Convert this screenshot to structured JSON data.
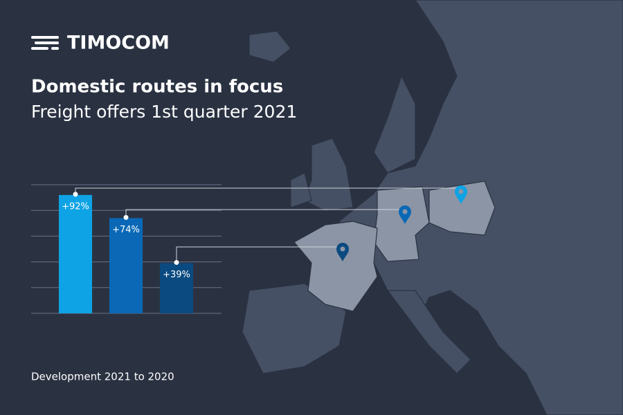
{
  "logo": "TIMOCOM",
  "chart_data": {
    "type": "bar",
    "title": "Domestic routes in focus",
    "subtitle": "Freight offers 1st quarter 2021",
    "footnote": "Development 2021 to 2020",
    "categories": [
      null,
      null,
      null
    ],
    "values": [
      92,
      74,
      39
    ],
    "value_labels": [
      "+92%",
      "+74%",
      "+39%"
    ],
    "colors": [
      "#0ea3e4",
      "#0a68b6",
      "#0b4a80"
    ],
    "ylim": [
      0,
      100
    ],
    "yticks": [
      0,
      20,
      40,
      60,
      80,
      100
    ],
    "grid": true
  }
}
